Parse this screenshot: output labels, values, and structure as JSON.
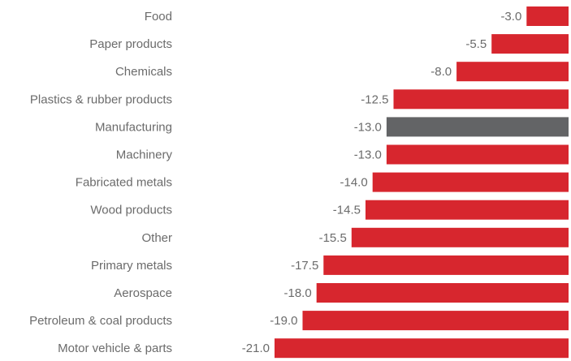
{
  "chart_data": {
    "type": "bar",
    "orientation": "horizontal",
    "categories": [
      "Food",
      "Paper products",
      "Chemicals",
      "Plastics & rubber products",
      "Manufacturing",
      "Machinery",
      "Fabricated metals",
      "Wood products",
      "Other",
      "Primary metals",
      "Aerospace",
      "Petroleum & coal products",
      "Motor vehicle & parts"
    ],
    "values": [
      -3.0,
      -5.5,
      -8.0,
      -12.5,
      -13.0,
      -13.0,
      -14.0,
      -14.5,
      -15.5,
      -17.5,
      -18.0,
      -19.0,
      -21.0
    ],
    "value_labels": [
      "-3.0",
      "-5.5",
      "-8.0",
      "-12.5",
      "-13.0",
      "-13.0",
      "-14.0",
      "-14.5",
      "-15.5",
      "-17.5",
      "-18.0",
      "-19.0",
      "-21.0"
    ],
    "title": "",
    "xlabel": "",
    "ylabel": "",
    "xlim": [
      -21,
      0
    ],
    "grid": false,
    "legend": "none",
    "colors": {
      "default_bar": "#d7262e",
      "highlight_bar": "#636466",
      "label_text": "#6b6b6b"
    },
    "highlight_category": "Manufacturing"
  }
}
